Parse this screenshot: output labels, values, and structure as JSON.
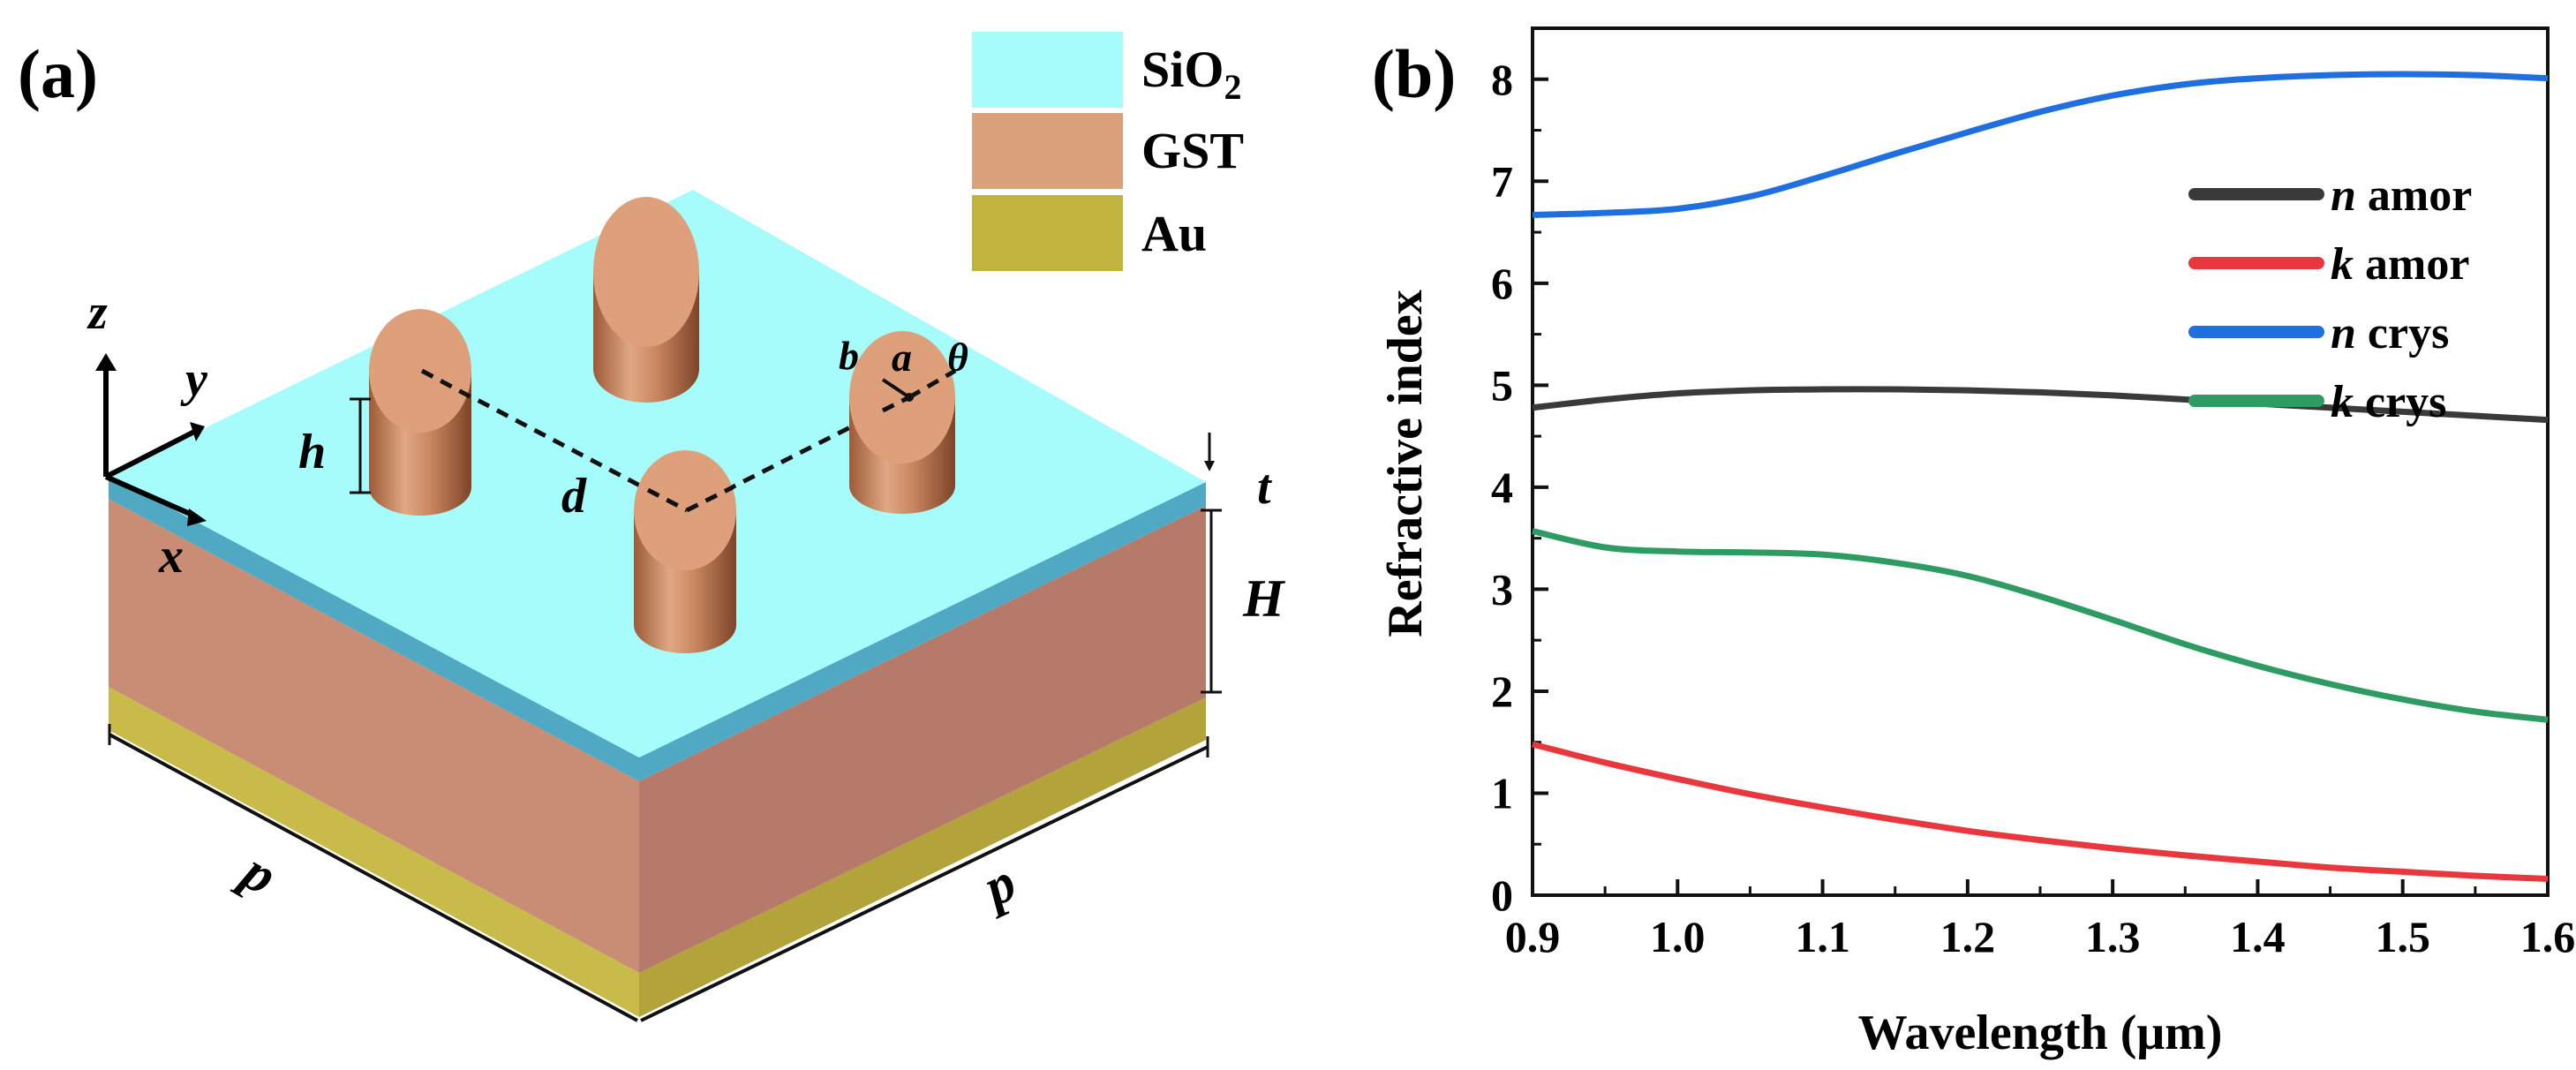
{
  "panel_a": {
    "label": "(a)",
    "legend": [
      {
        "name": "SiO",
        "sub": "2",
        "color": "#a6fbfb"
      },
      {
        "name": "GST",
        "sub": "",
        "color": "#dba17c"
      },
      {
        "name": "Au",
        "sub": "",
        "color": "#c1b43e"
      }
    ],
    "axes": {
      "z": "z",
      "y": "y",
      "x": "x"
    },
    "dims": {
      "h": "h",
      "d": "d",
      "b": "b",
      "a": "a",
      "theta": "θ",
      "t": "t",
      "H": "H",
      "p_left": "p",
      "p_right": "p"
    },
    "colors": {
      "sio2_top": "#a6fbfb",
      "sio2_side": "#4fa9c2",
      "gst_left": "#c98c74",
      "gst_right": "#b67a6a",
      "au_left": "#c9bb4a",
      "au_right": "#b3a33b"
    }
  },
  "panel_b": {
    "label": "(b)"
  },
  "chart_data": {
    "type": "line",
    "title": "",
    "xlabel": "Wavelength (μm)",
    "ylabel": "Refractive index",
    "xlim": [
      0.9,
      1.6
    ],
    "ylim": [
      0,
      8.5
    ],
    "xticks": [
      "0.9",
      "1.0",
      "1.1",
      "1.2",
      "1.3",
      "1.4",
      "1.5",
      "1.6"
    ],
    "yticks": [
      "0",
      "1",
      "2",
      "3",
      "4",
      "5",
      "6",
      "7",
      "8"
    ],
    "x": [
      0.9,
      0.95,
      1.0,
      1.05,
      1.1,
      1.15,
      1.2,
      1.25,
      1.3,
      1.35,
      1.4,
      1.45,
      1.5,
      1.55,
      1.6
    ],
    "series": [
      {
        "symbol": "n",
        "name": "amor",
        "color": "#3a3a3a",
        "values": [
          4.78,
          4.86,
          4.92,
          4.95,
          4.96,
          4.96,
          4.95,
          4.93,
          4.9,
          4.86,
          4.82,
          4.78,
          4.74,
          4.7,
          4.66
        ]
      },
      {
        "symbol": "k",
        "name": "amor",
        "color": "#e8383d",
        "values": [
          1.48,
          1.3,
          1.14,
          0.99,
          0.86,
          0.74,
          0.63,
          0.54,
          0.46,
          0.39,
          0.33,
          0.27,
          0.23,
          0.19,
          0.16
        ]
      },
      {
        "symbol": "n",
        "name": "crys",
        "color": "#1f6fe0",
        "values": [
          6.67,
          6.69,
          6.73,
          6.85,
          7.05,
          7.27,
          7.48,
          7.68,
          7.84,
          7.95,
          8.01,
          8.04,
          8.05,
          8.04,
          8.01
        ]
      },
      {
        "symbol": "k",
        "name": "crys",
        "color": "#2e9c62",
        "values": [
          3.57,
          3.41,
          3.37,
          3.36,
          3.34,
          3.26,
          3.13,
          2.93,
          2.7,
          2.46,
          2.25,
          2.07,
          1.92,
          1.8,
          1.72
        ]
      }
    ],
    "legend_position": "top-right"
  }
}
